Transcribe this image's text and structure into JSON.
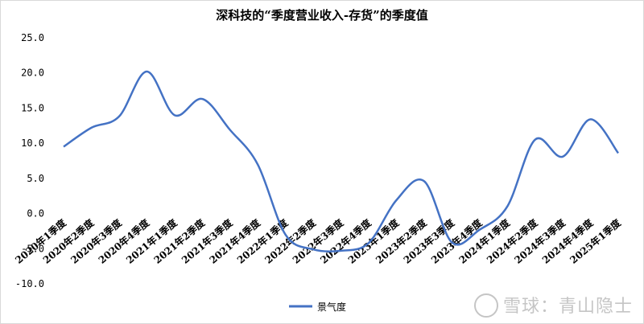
{
  "chart_data": {
    "type": "line",
    "title": "深科技的“季度营业收入-存货”的季度值",
    "categories": [
      "2020年1季度",
      "2020年2季度",
      "2020年3季度",
      "2020年4季度",
      "2021年1季度",
      "2021年2季度",
      "2021年3季度",
      "2021年4季度",
      "2022年1季度",
      "2022年2季度",
      "2022年3季度",
      "2022年4季度",
      "2023年1季度",
      "2023年2季度",
      "2023年3季度",
      "2023年4季度",
      "2024年1季度",
      "2024年2季度",
      "2024年3季度",
      "2024年4季度",
      "2025年1季度"
    ],
    "series": [
      {
        "name": "景气度",
        "color": "#4472c4",
        "values": [
          9.5,
          12.2,
          13.8,
          20.2,
          14.0,
          16.3,
          11.9,
          7.0,
          -3.0,
          -5.1,
          -5.3,
          -4.2,
          1.9,
          4.6,
          -4.1,
          -2.3,
          1.0,
          10.5,
          8.1,
          13.4,
          8.6
        ]
      }
    ],
    "yticks": [
      "25.0",
      "20.0",
      "15.0",
      "10.0",
      "5.0",
      "0.0",
      "-5.0",
      "-10.0"
    ],
    "ylim": [
      -10,
      25
    ],
    "grid": false,
    "legend_position": "bottom"
  },
  "watermark": {
    "text": "雪球：青山隐士"
  }
}
